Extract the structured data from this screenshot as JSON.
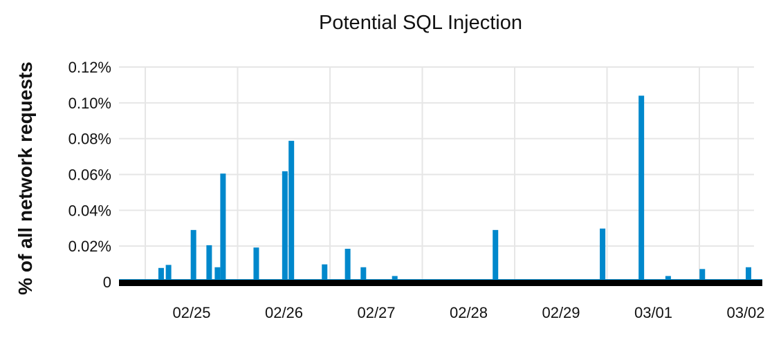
{
  "chart_data": {
    "type": "bar",
    "title": "Potential SQL Injection",
    "xlabel": "",
    "ylabel": "% of all network requests",
    "y_unit": "%",
    "ylim": [
      0,
      0.12
    ],
    "y_ticks": [
      0,
      0.02,
      0.04,
      0.06,
      0.08,
      0.1,
      0.12
    ],
    "y_tick_labels": [
      "0",
      "0.02%",
      "0.04%",
      "0.06%",
      "0.08%",
      "0.10%",
      "0.12%"
    ],
    "x_tick_labels": [
      "02/25",
      "02/26",
      "02/27",
      "02/28",
      "02/29",
      "03/01",
      "03/02"
    ],
    "x_range_days": [
      -0.85,
      6.1
    ],
    "grid": true,
    "bar_color": "#0088cc",
    "baseline_color": "#000000",
    "bars": [
      {
        "x": -0.33,
        "y": 0.0078
      },
      {
        "x": -0.25,
        "y": 0.0095
      },
      {
        "x": 0.02,
        "y": 0.029
      },
      {
        "x": 0.19,
        "y": 0.0205
      },
      {
        "x": 0.28,
        "y": 0.0082
      },
      {
        "x": 0.34,
        "y": 0.0605
      },
      {
        "x": 0.7,
        "y": 0.0192
      },
      {
        "x": 1.01,
        "y": 0.0618
      },
      {
        "x": 1.08,
        "y": 0.0788
      },
      {
        "x": 1.44,
        "y": 0.0098
      },
      {
        "x": 1.69,
        "y": 0.0185
      },
      {
        "x": 1.86,
        "y": 0.0082
      },
      {
        "x": 2.2,
        "y": 0.0033
      },
      {
        "x": 3.29,
        "y": 0.029
      },
      {
        "x": 4.45,
        "y": 0.0298
      },
      {
        "x": 4.87,
        "y": 0.104
      },
      {
        "x": 5.16,
        "y": 0.0033
      },
      {
        "x": 5.53,
        "y": 0.0072
      },
      {
        "x": 6.03,
        "y": 0.0082
      }
    ]
  }
}
